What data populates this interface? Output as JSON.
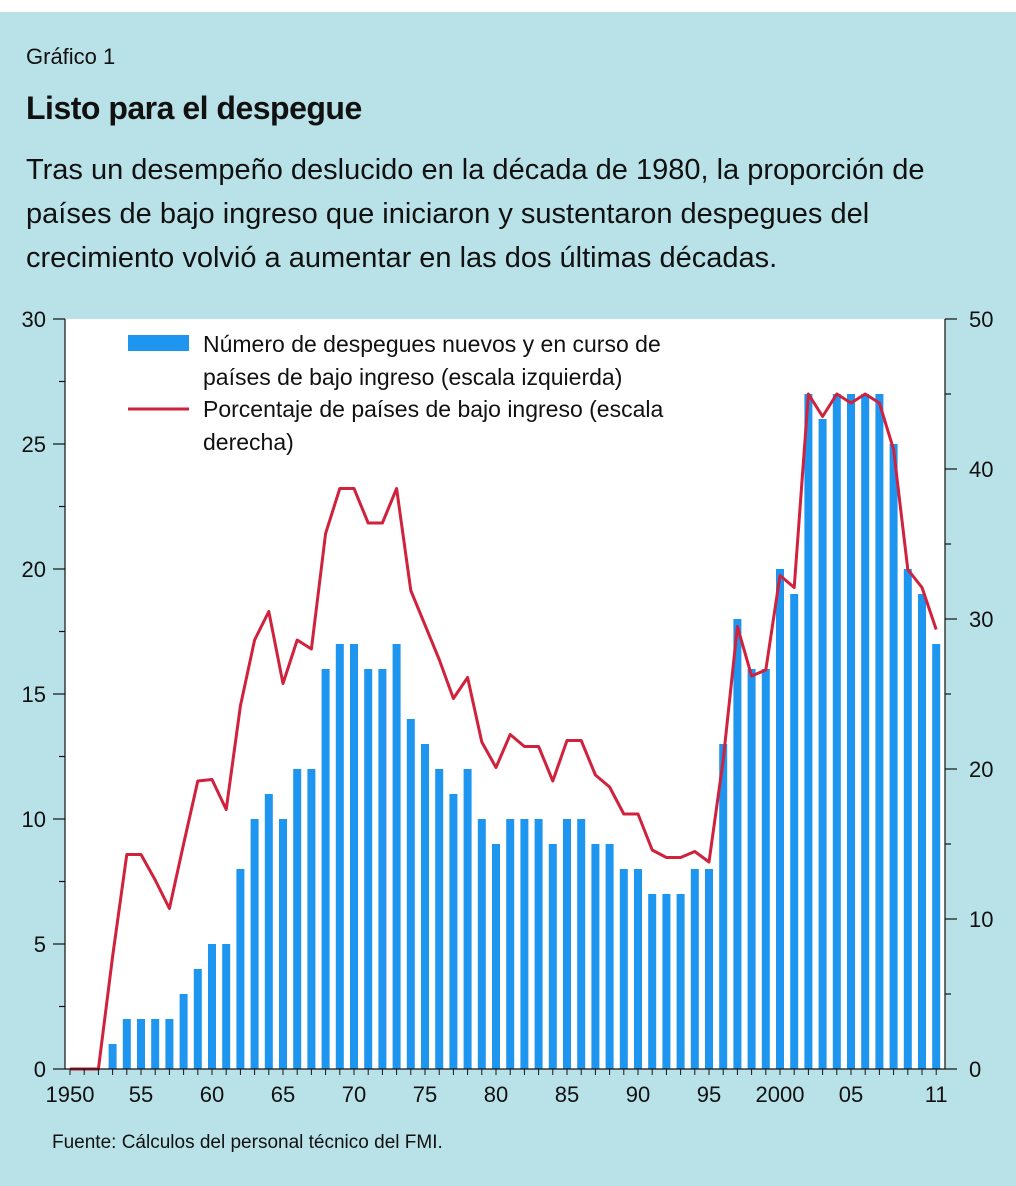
{
  "header": {
    "figure_label": "Gráfico 1",
    "title": "Listo para el despegue",
    "subtitle": "Tras un desempeño deslucido en la década de 1980, la proporción de países de bajo ingreso que iniciaron y sustentaron despegues del crecimiento volvió a aumentar en las dos últimas décadas."
  },
  "footer": {
    "source": "Fuente: Cálculos del personal técnico del FMI."
  },
  "chart_data": {
    "type": "bar",
    "title": "Listo para el despegue",
    "x_tick_labels": [
      "1950",
      "55",
      "60",
      "65",
      "70",
      "75",
      "80",
      "85",
      "90",
      "95",
      "2000",
      "05",
      "11"
    ],
    "x_tick_years": [
      1950,
      1955,
      1960,
      1965,
      1970,
      1975,
      1980,
      1985,
      1990,
      1995,
      2000,
      2005,
      2011
    ],
    "y_left": {
      "ylim": [
        0,
        30
      ],
      "ticks": [
        0,
        5,
        10,
        15,
        20,
        25,
        30
      ]
    },
    "y_right": {
      "ylim": [
        0,
        50
      ],
      "ticks": [
        0,
        10,
        20,
        30,
        40,
        50
      ]
    },
    "grid": false,
    "legend_placement": "top-left",
    "x": [
      1950,
      1951,
      1952,
      1953,
      1954,
      1955,
      1956,
      1957,
      1958,
      1959,
      1960,
      1961,
      1962,
      1963,
      1964,
      1965,
      1966,
      1967,
      1968,
      1969,
      1970,
      1971,
      1972,
      1973,
      1974,
      1975,
      1976,
      1977,
      1978,
      1979,
      1980,
      1981,
      1982,
      1983,
      1984,
      1985,
      1986,
      1987,
      1988,
      1989,
      1990,
      1991,
      1992,
      1993,
      1994,
      1995,
      1996,
      1997,
      1998,
      1999,
      2000,
      2001,
      2002,
      2003,
      2004,
      2005,
      2006,
      2007,
      2008,
      2009,
      2010,
      2011
    ],
    "series": [
      {
        "name": "Número de despegues nuevos y en curso de países de bajo ingreso (escala izquierda)",
        "type": "bar",
        "axis": "left",
        "color": "#1e96f0",
        "values": [
          0,
          0,
          0,
          1,
          2,
          2,
          2,
          2,
          3,
          4,
          5,
          5,
          8,
          10,
          11,
          10,
          12,
          12,
          16,
          17,
          17,
          16,
          16,
          17,
          14,
          13,
          12,
          11,
          12,
          10,
          9,
          10,
          10,
          10,
          9,
          10,
          10,
          9,
          9,
          8,
          8,
          7,
          7,
          7,
          8,
          8,
          13,
          18,
          16,
          16,
          20,
          19,
          27,
          26,
          27,
          27,
          27,
          27,
          25,
          20,
          19,
          17
        ]
      },
      {
        "name": "Porcentaje de países de bajo ingreso (escala derecha)",
        "type": "line",
        "axis": "right",
        "color": "#d0213d",
        "values": [
          0,
          0,
          0,
          7.5,
          14.3,
          14.3,
          12.6,
          10.7,
          15,
          19.2,
          19.3,
          17.3,
          24.2,
          28.6,
          30.5,
          25.7,
          28.6,
          28,
          35.7,
          38.7,
          38.7,
          36.4,
          36.4,
          38.7,
          31.9,
          29.6,
          27.3,
          24.7,
          26.1,
          21.8,
          20.1,
          22.3,
          21.5,
          21.5,
          19.2,
          21.9,
          21.9,
          19.6,
          18.8,
          17,
          17,
          14.6,
          14.1,
          14.1,
          14.5,
          13.8,
          20.6,
          29.5,
          26.2,
          26.6,
          32.9,
          32.1,
          45,
          43.5,
          45,
          44.4,
          45,
          44.4,
          41.3,
          33.3,
          32.1,
          29.3
        ]
      }
    ]
  }
}
